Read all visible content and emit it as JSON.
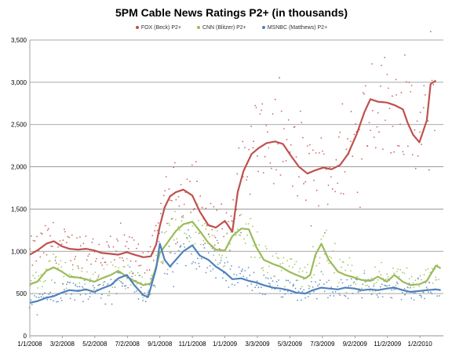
{
  "chart_data": {
    "type": "line",
    "title": "5PM Cable News Ratings P2+ (in thousands)",
    "xlabel": "",
    "ylabel": "",
    "ylim": [
      0,
      3500
    ],
    "y_ticks": [
      "0",
      "500",
      "1,000",
      "1,500",
      "2,000",
      "2,500",
      "3,000",
      "3,500"
    ],
    "x_range": [
      "2008-01-01",
      "2010-02-15"
    ],
    "x_tick_labels": [
      "1/1/2008",
      "3/2/2008",
      "5/2/2008",
      "7/2/2008",
      "9/1/2008",
      "11/1/2008",
      "1/1/2009",
      "3/3/2009",
      "5/3/2009",
      "7/3/2009",
      "9/2/2009",
      "11/2/2009",
      "1/2/2010"
    ],
    "grid": "horizontal",
    "legend_position": "top",
    "series": [
      {
        "name": "FOX (Beck) P2+",
        "color": "#c0504d",
        "points": [
          [
            "2008-01-01",
            960
          ],
          [
            "2008-01-15",
            1010
          ],
          [
            "2008-02-01",
            1090
          ],
          [
            "2008-02-15",
            1120
          ],
          [
            "2008-03-01",
            1060
          ],
          [
            "2008-03-15",
            1030
          ],
          [
            "2008-04-01",
            1020
          ],
          [
            "2008-04-15",
            1030
          ],
          [
            "2008-05-01",
            1010
          ],
          [
            "2008-05-15",
            980
          ],
          [
            "2008-06-01",
            970
          ],
          [
            "2008-06-15",
            960
          ],
          [
            "2008-07-01",
            990
          ],
          [
            "2008-07-15",
            960
          ],
          [
            "2008-08-01",
            930
          ],
          [
            "2008-08-15",
            940
          ],
          [
            "2008-08-25",
            1080
          ],
          [
            "2008-09-01",
            1300
          ],
          [
            "2008-09-10",
            1520
          ],
          [
            "2008-09-20",
            1650
          ],
          [
            "2008-10-01",
            1700
          ],
          [
            "2008-10-15",
            1730
          ],
          [
            "2008-11-01",
            1660
          ],
          [
            "2008-11-15",
            1470
          ],
          [
            "2008-12-01",
            1310
          ],
          [
            "2008-12-15",
            1280
          ],
          [
            "2009-01-01",
            1360
          ],
          [
            "2009-01-15",
            1230
          ],
          [
            "2009-01-25",
            1700
          ],
          [
            "2009-02-05",
            1950
          ],
          [
            "2009-02-20",
            2150
          ],
          [
            "2009-03-05",
            2220
          ],
          [
            "2009-03-20",
            2280
          ],
          [
            "2009-04-05",
            2300
          ],
          [
            "2009-04-20",
            2270
          ],
          [
            "2009-05-05",
            2130
          ],
          [
            "2009-05-20",
            2000
          ],
          [
            "2009-06-05",
            1920
          ],
          [
            "2009-06-20",
            1960
          ],
          [
            "2009-07-05",
            1990
          ],
          [
            "2009-07-20",
            1970
          ],
          [
            "2009-08-05",
            2020
          ],
          [
            "2009-08-20",
            2150
          ],
          [
            "2009-09-05",
            2380
          ],
          [
            "2009-09-20",
            2650
          ],
          [
            "2009-10-01",
            2800
          ],
          [
            "2009-10-15",
            2770
          ],
          [
            "2009-11-01",
            2760
          ],
          [
            "2009-11-15",
            2730
          ],
          [
            "2009-12-01",
            2680
          ],
          [
            "2009-12-10",
            2520
          ],
          [
            "2009-12-20",
            2380
          ],
          [
            "2010-01-01",
            2290
          ],
          [
            "2010-01-08",
            2420
          ],
          [
            "2010-01-15",
            2550
          ],
          [
            "2010-01-22",
            2980
          ],
          [
            "2010-02-01",
            3020
          ]
        ]
      },
      {
        "name": "CNN (Blitzer) P2+",
        "color": "#9bbb59",
        "points": [
          [
            "2008-01-01",
            610
          ],
          [
            "2008-01-15",
            640
          ],
          [
            "2008-02-01",
            770
          ],
          [
            "2008-02-15",
            810
          ],
          [
            "2008-03-01",
            760
          ],
          [
            "2008-03-15",
            700
          ],
          [
            "2008-04-01",
            690
          ],
          [
            "2008-04-15",
            670
          ],
          [
            "2008-05-01",
            640
          ],
          [
            "2008-05-15",
            680
          ],
          [
            "2008-06-01",
            720
          ],
          [
            "2008-06-15",
            770
          ],
          [
            "2008-07-01",
            700
          ],
          [
            "2008-07-15",
            650
          ],
          [
            "2008-08-01",
            600
          ],
          [
            "2008-08-15",
            620
          ],
          [
            "2008-08-25",
            820
          ],
          [
            "2008-09-01",
            980
          ],
          [
            "2008-09-15",
            1100
          ],
          [
            "2008-10-01",
            1240
          ],
          [
            "2008-10-15",
            1320
          ],
          [
            "2008-11-01",
            1350
          ],
          [
            "2008-11-15",
            1240
          ],
          [
            "2008-12-01",
            1100
          ],
          [
            "2008-12-15",
            1020
          ],
          [
            "2009-01-01",
            1010
          ],
          [
            "2009-01-15",
            1180
          ],
          [
            "2009-02-01",
            1270
          ],
          [
            "2009-02-15",
            1260
          ],
          [
            "2009-03-01",
            1050
          ],
          [
            "2009-03-15",
            900
          ],
          [
            "2009-04-01",
            850
          ],
          [
            "2009-04-15",
            820
          ],
          [
            "2009-05-01",
            760
          ],
          [
            "2009-05-15",
            720
          ],
          [
            "2009-06-01",
            680
          ],
          [
            "2009-06-10",
            720
          ],
          [
            "2009-06-20",
            960
          ],
          [
            "2009-07-01",
            1090
          ],
          [
            "2009-07-15",
            900
          ],
          [
            "2009-08-01",
            760
          ],
          [
            "2009-08-15",
            720
          ],
          [
            "2009-09-01",
            690
          ],
          [
            "2009-09-15",
            660
          ],
          [
            "2009-10-01",
            650
          ],
          [
            "2009-10-15",
            700
          ],
          [
            "2009-11-01",
            640
          ],
          [
            "2009-11-15",
            720
          ],
          [
            "2009-12-01",
            640
          ],
          [
            "2009-12-15",
            600
          ],
          [
            "2010-01-01",
            610
          ],
          [
            "2010-01-15",
            650
          ],
          [
            "2010-02-01",
            830
          ],
          [
            "2010-02-10",
            800
          ]
        ]
      },
      {
        "name": "MSNBC (Matthews) P2+",
        "color": "#4f81bd",
        "points": [
          [
            "2008-01-01",
            390
          ],
          [
            "2008-01-15",
            410
          ],
          [
            "2008-02-01",
            450
          ],
          [
            "2008-02-15",
            470
          ],
          [
            "2008-03-01",
            510
          ],
          [
            "2008-03-15",
            540
          ],
          [
            "2008-04-01",
            530
          ],
          [
            "2008-04-15",
            550
          ],
          [
            "2008-05-01",
            520
          ],
          [
            "2008-05-15",
            560
          ],
          [
            "2008-06-01",
            600
          ],
          [
            "2008-06-15",
            680
          ],
          [
            "2008-07-01",
            720
          ],
          [
            "2008-07-15",
            600
          ],
          [
            "2008-08-01",
            480
          ],
          [
            "2008-08-10",
            460
          ],
          [
            "2008-08-25",
            800
          ],
          [
            "2008-09-01",
            1090
          ],
          [
            "2008-09-10",
            900
          ],
          [
            "2008-09-20",
            820
          ],
          [
            "2008-10-01",
            900
          ],
          [
            "2008-10-15",
            1000
          ],
          [
            "2008-11-01",
            1070
          ],
          [
            "2008-11-15",
            950
          ],
          [
            "2008-12-01",
            900
          ],
          [
            "2008-12-15",
            820
          ],
          [
            "2009-01-01",
            750
          ],
          [
            "2009-01-15",
            670
          ],
          [
            "2009-02-01",
            680
          ],
          [
            "2009-02-15",
            650
          ],
          [
            "2009-03-01",
            630
          ],
          [
            "2009-03-15",
            600
          ],
          [
            "2009-04-01",
            570
          ],
          [
            "2009-04-15",
            560
          ],
          [
            "2009-05-01",
            540
          ],
          [
            "2009-05-15",
            510
          ],
          [
            "2009-06-01",
            500
          ],
          [
            "2009-06-15",
            540
          ],
          [
            "2009-07-01",
            570
          ],
          [
            "2009-07-15",
            560
          ],
          [
            "2009-08-01",
            550
          ],
          [
            "2009-08-15",
            570
          ],
          [
            "2009-09-01",
            560
          ],
          [
            "2009-09-15",
            540
          ],
          [
            "2009-10-01",
            550
          ],
          [
            "2009-10-15",
            540
          ],
          [
            "2009-11-01",
            560
          ],
          [
            "2009-11-15",
            570
          ],
          [
            "2009-12-01",
            540
          ],
          [
            "2009-12-15",
            520
          ],
          [
            "2010-01-01",
            530
          ],
          [
            "2010-01-15",
            540
          ],
          [
            "2010-02-01",
            550
          ],
          [
            "2010-02-10",
            540
          ]
        ]
      }
    ]
  }
}
